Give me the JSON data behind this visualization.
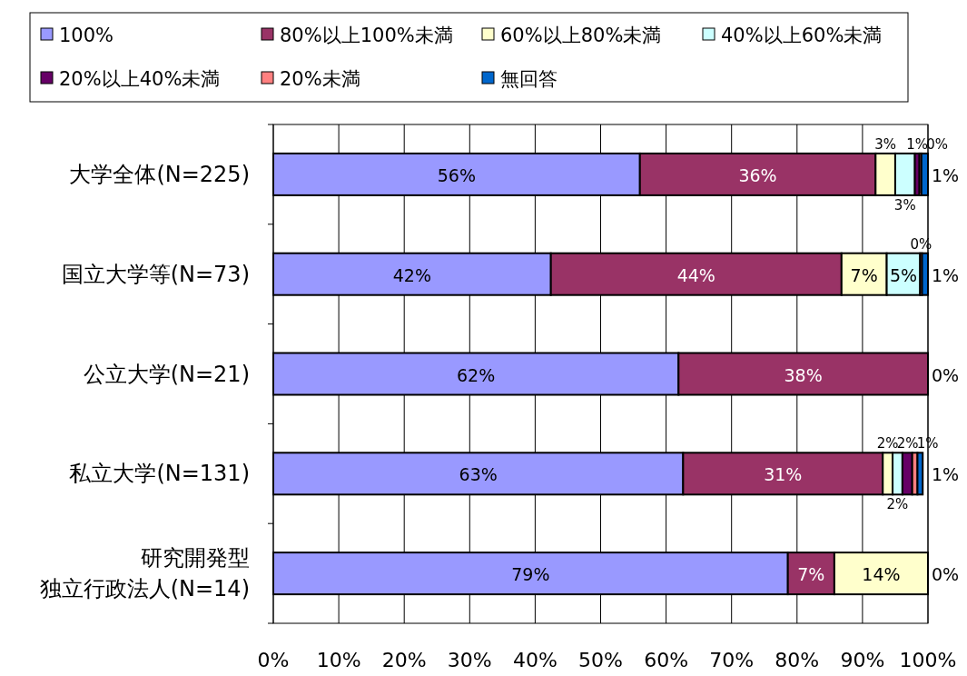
{
  "chart_data": {
    "type": "bar",
    "orientation": "horizontal",
    "stacked": true,
    "legend": "top",
    "grid": "x",
    "categories": [
      "大学全体(N=225)",
      "国立大学等(N=73)",
      "公立大学(N=21)",
      "私立大学(N=131)",
      "研究開発型独立行政法人(N=14)"
    ],
    "xlim": [
      0,
      100
    ],
    "xticks": [
      {
        "value": 0,
        "label": "0%"
      },
      {
        "value": 10,
        "label": "10%"
      },
      {
        "value": 20,
        "label": "20%"
      },
      {
        "value": 30,
        "label": "30%"
      },
      {
        "value": 40,
        "label": "40%"
      },
      {
        "value": 50,
        "label": "50%"
      },
      {
        "value": 60,
        "label": "60%"
      },
      {
        "value": 70,
        "label": "70%"
      },
      {
        "value": 80,
        "label": "80%"
      },
      {
        "value": 90,
        "label": "90%"
      },
      {
        "value": 100,
        "label": "100%"
      }
    ],
    "series": [
      {
        "name": "100%",
        "color": "#9999ff",
        "values": [
          56,
          42.4,
          61.9,
          62.6,
          78.6
        ],
        "value_labels": [
          "56%",
          "42%",
          "62%",
          "63%",
          "79%"
        ]
      },
      {
        "name": "80%以上100%未満",
        "color": "#993366",
        "values": [
          36,
          44.4,
          38.1,
          30.5,
          7.1
        ],
        "value_labels": [
          "36%",
          "44%",
          "38%",
          "31%",
          "7%"
        ]
      },
      {
        "name": "60%以上80%未満",
        "color": "#ffffcc",
        "values": [
          3,
          6.9,
          0,
          1.5,
          14.3
        ],
        "value_labels": [
          "3%",
          "7%",
          null,
          "2%",
          "14%"
        ]
      },
      {
        "name": "40%以上60%未満",
        "color": "#ccffff",
        "values": [
          3,
          5.1,
          0,
          1.5,
          0
        ],
        "value_labels": [
          "3%",
          "5%",
          null,
          "2%",
          null
        ]
      },
      {
        "name": "20%以上40%未満",
        "color": "#660066",
        "values": [
          0.7,
          0,
          0,
          1.5,
          0
        ],
        "value_labels": [
          "1%",
          null,
          null,
          "2%",
          null
        ]
      },
      {
        "name": "20%未満",
        "color": "#ff8080",
        "values": [
          0.3,
          0.3,
          0,
          0.8,
          0
        ],
        "value_labels": [
          "0%",
          "0%",
          null,
          "1%",
          null
        ]
      },
      {
        "name": "無回答",
        "color": "#0066cc",
        "values": [
          1,
          0.9,
          0,
          0.8,
          0
        ],
        "value_labels": [
          "1%",
          "1%",
          "0%",
          "1%",
          "0%"
        ]
      }
    ]
  }
}
